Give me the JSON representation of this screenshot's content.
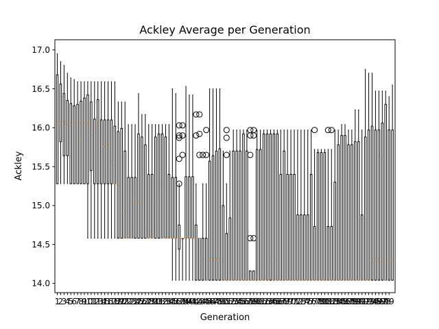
{
  "chart_data": {
    "type": "boxplot",
    "title": "Ackley Average per Generation",
    "xlabel": "Generation",
    "ylabel": "Ackley",
    "ylim": [
      13.88,
      17.13
    ],
    "yticks": [
      14.0,
      14.5,
      15.0,
      15.5,
      16.0,
      16.5,
      17.0
    ],
    "grid": false,
    "colors": {
      "box": "#000000",
      "median": "#ff7f0e",
      "flier": "#000000"
    },
    "generations": [
      1,
      2,
      3,
      4,
      5,
      6,
      7,
      8,
      9,
      10,
      11,
      12,
      13,
      14,
      15,
      16,
      17,
      18,
      19,
      20,
      21,
      22,
      23,
      24,
      25,
      26,
      27,
      28,
      29,
      30,
      31,
      32,
      33,
      34,
      35,
      36,
      37,
      38,
      39,
      40,
      41,
      42,
      43,
      44,
      45,
      46,
      47,
      48,
      49,
      50,
      51,
      52,
      53,
      54,
      55,
      56,
      57,
      58,
      59,
      60,
      61,
      62,
      63,
      64,
      65,
      66,
      67,
      68,
      69,
      70,
      71,
      72,
      73,
      74,
      75,
      76,
      77,
      78,
      79,
      80,
      81,
      82,
      83,
      84,
      85,
      86,
      87,
      88,
      89,
      90,
      91,
      92,
      93,
      94,
      95,
      96,
      97,
      98,
      99
    ],
    "boxes": [
      {
        "wl": 15.28,
        "q1": 15.28,
        "med": 16.06,
        "q3": 16.68,
        "wh": 16.95
      },
      {
        "wl": 15.28,
        "q1": 15.82,
        "med": 16.06,
        "q3": 16.56,
        "wh": 16.85
      },
      {
        "wl": 15.28,
        "q1": 15.64,
        "med": 16.06,
        "q3": 16.44,
        "wh": 16.8
      },
      {
        "wl": 15.28,
        "q1": 15.64,
        "med": 16.06,
        "q3": 16.35,
        "wh": 16.7
      },
      {
        "wl": 15.28,
        "q1": 15.28,
        "med": 16.06,
        "q3": 16.31,
        "wh": 16.64
      },
      {
        "wl": 15.28,
        "q1": 15.28,
        "med": 16.06,
        "q3": 16.28,
        "wh": 16.62
      },
      {
        "wl": 15.28,
        "q1": 15.28,
        "med": 15.84,
        "q3": 16.3,
        "wh": 16.59
      },
      {
        "wl": 15.28,
        "q1": 15.28,
        "med": 16.06,
        "q3": 16.34,
        "wh": 16.59
      },
      {
        "wl": 15.28,
        "q1": 15.28,
        "med": 16.06,
        "q3": 16.38,
        "wh": 16.59
      },
      {
        "wl": 14.58,
        "q1": 15.28,
        "med": 16.06,
        "q3": 16.42,
        "wh": 16.59
      },
      {
        "wl": 14.58,
        "q1": 15.45,
        "med": 15.9,
        "q3": 16.33,
        "wh": 16.59
      },
      {
        "wl": 14.58,
        "q1": 15.28,
        "med": 15.62,
        "q3": 16.11,
        "wh": 16.59
      },
      {
        "wl": 14.58,
        "q1": 15.28,
        "med": 16.06,
        "q3": 16.36,
        "wh": 16.59
      },
      {
        "wl": 14.58,
        "q1": 15.28,
        "med": 15.93,
        "q3": 16.1,
        "wh": 16.59
      },
      {
        "wl": 14.58,
        "q1": 15.28,
        "med": 15.76,
        "q3": 16.1,
        "wh": 16.59
      },
      {
        "wl": 14.58,
        "q1": 15.28,
        "med": 15.76,
        "q3": 16.1,
        "wh": 16.59
      },
      {
        "wl": 14.58,
        "q1": 15.28,
        "med": 15.55,
        "q3": 16.1,
        "wh": 16.59
      },
      {
        "wl": 14.58,
        "q1": 15.28,
        "med": 15.28,
        "q3": 16.02,
        "wh": 16.59
      },
      {
        "wl": 14.58,
        "q1": 14.58,
        "med": 15.28,
        "q3": 15.95,
        "wh": 16.33
      },
      {
        "wl": 14.58,
        "q1": 14.58,
        "med": 14.9,
        "q3": 15.99,
        "wh": 16.33
      },
      {
        "wl": 14.58,
        "q1": 14.58,
        "med": 14.58,
        "q3": 15.7,
        "wh": 16.33
      },
      {
        "wl": 14.58,
        "q1": 14.58,
        "med": 14.58,
        "q3": 15.36,
        "wh": 16.04
      },
      {
        "wl": 14.58,
        "q1": 14.58,
        "med": 14.58,
        "q3": 15.36,
        "wh": 16.04
      },
      {
        "wl": 14.58,
        "q1": 14.58,
        "med": 15.05,
        "q3": 15.36,
        "wh": 16.04
      },
      {
        "wl": 14.58,
        "q1": 14.58,
        "med": 15.05,
        "q3": 15.92,
        "wh": 16.44
      },
      {
        "wl": 14.58,
        "q1": 14.58,
        "med": 15.05,
        "q3": 15.88,
        "wh": 16.17
      },
      {
        "wl": 14.58,
        "q1": 14.58,
        "med": 14.7,
        "q3": 15.78,
        "wh": 16.17
      },
      {
        "wl": 14.58,
        "q1": 14.58,
        "med": 14.58,
        "q3": 15.4,
        "wh": 16.04
      },
      {
        "wl": 14.58,
        "q1": 14.58,
        "med": 14.58,
        "q3": 15.4,
        "wh": 16.04
      },
      {
        "wl": 14.58,
        "q1": 14.58,
        "med": 15.05,
        "q3": 15.88,
        "wh": 16.04
      },
      {
        "wl": 14.58,
        "q1": 14.58,
        "med": 15.28,
        "q3": 15.92,
        "wh": 16.04
      },
      {
        "wl": 14.58,
        "q1": 14.58,
        "med": 14.58,
        "q3": 15.92,
        "wh": 16.04
      },
      {
        "wl": 14.58,
        "q1": 14.58,
        "med": 14.58,
        "q3": 15.88,
        "wh": 16.04
      },
      {
        "wl": 14.58,
        "q1": 14.58,
        "med": 14.58,
        "q3": 15.4,
        "wh": 16.04
      },
      {
        "wl": 14.04,
        "q1": 14.58,
        "med": 14.58,
        "q3": 15.36,
        "wh": 16.5
      },
      {
        "wl": 14.04,
        "q1": 14.58,
        "med": 14.58,
        "q3": 15.36,
        "wh": 16.44
      },
      {
        "wl": 14.04,
        "q1": 14.44,
        "med": 14.58,
        "q3": 14.75,
        "wh": 15.28,
        "fl": [
          15.6,
          15.9,
          16.03,
          15.28,
          15.87
        ]
      },
      {
        "wl": 14.04,
        "q1": 14.58,
        "med": 14.58,
        "q3": 14.58,
        "wh": 14.58,
        "fl": [
          15.65,
          15.9,
          16.03
        ]
      },
      {
        "wl": 14.04,
        "q1": 14.58,
        "med": 14.58,
        "q3": 15.37,
        "wh": 16.53
      },
      {
        "wl": 14.04,
        "q1": 14.58,
        "med": 14.58,
        "q3": 15.37,
        "wh": 16.42
      },
      {
        "wl": 14.04,
        "q1": 14.58,
        "med": 14.58,
        "q3": 15.37,
        "wh": 16.42
      },
      {
        "wl": 14.04,
        "q1": 14.04,
        "med": 14.58,
        "q3": 14.75,
        "wh": 15.28,
        "fl": [
          15.9,
          16.17
        ]
      },
      {
        "wl": 14.04,
        "q1": 14.04,
        "med": 14.58,
        "q3": 14.58,
        "wh": 14.58,
        "fl": [
          15.65,
          15.92,
          16.17
        ]
      },
      {
        "wl": 14.04,
        "q1": 14.04,
        "med": 14.3,
        "q3": 14.58,
        "wh": 15.28,
        "fl": [
          15.65
        ]
      },
      {
        "wl": 14.04,
        "q1": 14.04,
        "med": 14.04,
        "q3": 14.58,
        "wh": 15.28,
        "fl": [
          15.65,
          15.97
        ]
      },
      {
        "wl": 14.04,
        "q1": 14.04,
        "med": 14.3,
        "q3": 15.57,
        "wh": 16.5
      },
      {
        "wl": 14.04,
        "q1": 14.04,
        "med": 14.3,
        "q3": 15.64,
        "wh": 16.5
      },
      {
        "wl": 14.04,
        "q1": 14.04,
        "med": 14.3,
        "q3": 15.7,
        "wh": 16.5
      },
      {
        "wl": 14.04,
        "q1": 14.04,
        "med": 14.3,
        "q3": 15.73,
        "wh": 16.5
      },
      {
        "wl": 14.04,
        "q1": 14.04,
        "med": 14.04,
        "q3": 15.0,
        "wh": 15.7
      },
      {
        "wl": 14.04,
        "q1": 14.04,
        "med": 14.04,
        "q3": 14.64,
        "wh": 15.28,
        "fl": [
          15.65,
          15.87,
          15.97
        ]
      },
      {
        "wl": 14.04,
        "q1": 14.04,
        "med": 14.04,
        "q3": 14.84,
        "wh": 15.7
      },
      {
        "wl": 14.04,
        "q1": 14.04,
        "med": 14.04,
        "q3": 15.7,
        "wh": 15.97
      },
      {
        "wl": 14.04,
        "q1": 14.04,
        "med": 14.04,
        "q3": 15.7,
        "wh": 15.97
      },
      {
        "wl": 14.04,
        "q1": 14.04,
        "med": 14.04,
        "q3": 15.7,
        "wh": 15.97
      },
      {
        "wl": 14.04,
        "q1": 14.04,
        "med": 14.04,
        "q3": 15.92,
        "wh": 15.97
      },
      {
        "wl": 14.04,
        "q1": 14.04,
        "med": 14.04,
        "q3": 15.7,
        "wh": 15.97
      },
      {
        "wl": 14.04,
        "q1": 14.04,
        "med": 14.04,
        "q3": 14.16,
        "wh": 14.16,
        "fl": [
          14.58,
          15.65,
          15.9,
          15.97
        ]
      },
      {
        "wl": 14.04,
        "q1": 14.04,
        "med": 14.04,
        "q3": 14.16,
        "wh": 14.16,
        "fl": [
          14.58,
          15.9,
          15.97
        ]
      },
      {
        "wl": 14.04,
        "q1": 14.04,
        "med": 14.04,
        "q3": 15.72,
        "wh": 15.97
      },
      {
        "wl": 14.04,
        "q1": 14.04,
        "med": 14.04,
        "q3": 15.72,
        "wh": 15.97
      },
      {
        "wl": 14.04,
        "q1": 14.04,
        "med": 14.04,
        "q3": 15.92,
        "wh": 15.97
      },
      {
        "wl": 14.04,
        "q1": 14.04,
        "med": 14.04,
        "q3": 15.92,
        "wh": 15.97
      },
      {
        "wl": 14.04,
        "q1": 14.04,
        "med": 14.3,
        "q3": 15.92,
        "wh": 15.97
      },
      {
        "wl": 14.04,
        "q1": 14.04,
        "med": 14.04,
        "q3": 15.92,
        "wh": 15.97
      },
      {
        "wl": 14.04,
        "q1": 14.04,
        "med": 14.04,
        "q3": 15.92,
        "wh": 15.97
      },
      {
        "wl": 14.04,
        "q1": 14.04,
        "med": 14.04,
        "q3": 15.4,
        "wh": 15.97
      },
      {
        "wl": 14.04,
        "q1": 14.04,
        "med": 14.04,
        "q3": 15.7,
        "wh": 15.97
      },
      {
        "wl": 14.04,
        "q1": 14.04,
        "med": 14.04,
        "q3": 15.4,
        "wh": 15.97
      },
      {
        "wl": 14.04,
        "q1": 14.04,
        "med": 14.04,
        "q3": 15.4,
        "wh": 15.97
      },
      {
        "wl": 14.04,
        "q1": 14.04,
        "med": 14.04,
        "q3": 15.4,
        "wh": 15.97
      },
      {
        "wl": 14.04,
        "q1": 14.04,
        "med": 14.04,
        "q3": 14.88,
        "wh": 15.97
      },
      {
        "wl": 14.04,
        "q1": 14.04,
        "med": 14.04,
        "q3": 14.88,
        "wh": 15.97
      },
      {
        "wl": 14.04,
        "q1": 14.04,
        "med": 14.04,
        "q3": 14.88,
        "wh": 15.97
      },
      {
        "wl": 14.04,
        "q1": 14.04,
        "med": 14.04,
        "q3": 14.88,
        "wh": 15.97
      },
      {
        "wl": 14.04,
        "q1": 14.04,
        "med": 14.04,
        "q3": 15.4,
        "wh": 15.97
      },
      {
        "wl": 14.04,
        "q1": 14.04,
        "med": 14.04,
        "q3": 14.73,
        "wh": 15.72,
        "fl": [
          15.97
        ]
      },
      {
        "wl": 14.04,
        "q1": 14.04,
        "med": 14.04,
        "q3": 15.68,
        "wh": 15.72
      },
      {
        "wl": 14.04,
        "q1": 14.04,
        "med": 14.04,
        "q3": 15.68,
        "wh": 15.72
      },
      {
        "wl": 14.04,
        "q1": 14.04,
        "med": 14.04,
        "q3": 15.68,
        "wh": 15.72
      },
      {
        "wl": 14.04,
        "q1": 14.04,
        "med": 14.04,
        "q3": 14.73,
        "wh": 15.72,
        "fl": [
          15.97
        ]
      },
      {
        "wl": 14.04,
        "q1": 14.04,
        "med": 14.04,
        "q3": 14.73,
        "wh": 15.72,
        "fl": [
          15.97
        ]
      },
      {
        "wl": 14.04,
        "q1": 14.04,
        "med": 14.04,
        "q3": 15.3,
        "wh": 15.97
      },
      {
        "wl": 14.04,
        "q1": 14.04,
        "med": 14.04,
        "q3": 15.78,
        "wh": 15.97
      },
      {
        "wl": 14.04,
        "q1": 14.04,
        "med": 14.04,
        "q3": 15.9,
        "wh": 16.04
      },
      {
        "wl": 14.04,
        "q1": 14.04,
        "med": 14.04,
        "q3": 15.9,
        "wh": 16.04
      },
      {
        "wl": 14.04,
        "q1": 14.04,
        "med": 14.04,
        "q3": 15.78,
        "wh": 15.97
      },
      {
        "wl": 14.04,
        "q1": 14.04,
        "med": 14.04,
        "q3": 15.78,
        "wh": 15.97
      },
      {
        "wl": 14.04,
        "q1": 14.04,
        "med": 14.04,
        "q3": 15.82,
        "wh": 16.23
      },
      {
        "wl": 14.04,
        "q1": 14.04,
        "med": 14.04,
        "q3": 15.82,
        "wh": 16.23
      },
      {
        "wl": 14.04,
        "q1": 14.04,
        "med": 14.04,
        "q3": 14.88,
        "wh": 15.97
      },
      {
        "wl": 14.04,
        "q1": 14.04,
        "med": 14.04,
        "q3": 15.88,
        "wh": 16.75
      },
      {
        "wl": 14.04,
        "q1": 14.04,
        "med": 14.04,
        "q3": 15.97,
        "wh": 16.7
      },
      {
        "wl": 14.04,
        "q1": 14.04,
        "med": 14.3,
        "q3": 16.02,
        "wh": 16.7
      },
      {
        "wl": 14.04,
        "q1": 14.04,
        "med": 14.3,
        "q3": 15.97,
        "wh": 16.47
      },
      {
        "wl": 14.04,
        "q1": 14.04,
        "med": 14.3,
        "q3": 15.97,
        "wh": 16.47
      },
      {
        "wl": 14.04,
        "q1": 14.04,
        "med": 15.6,
        "q3": 16.06,
        "wh": 16.47
      },
      {
        "wl": 14.04,
        "q1": 14.04,
        "med": 14.04,
        "q3": 16.3,
        "wh": 16.47
      },
      {
        "wl": 14.04,
        "q1": 14.04,
        "med": 14.3,
        "q3": 15.97,
        "wh": 16.4
      },
      {
        "wl": 14.04,
        "q1": 14.04,
        "med": 14.3,
        "q3": 15.97,
        "wh": 16.55
      }
    ]
  }
}
